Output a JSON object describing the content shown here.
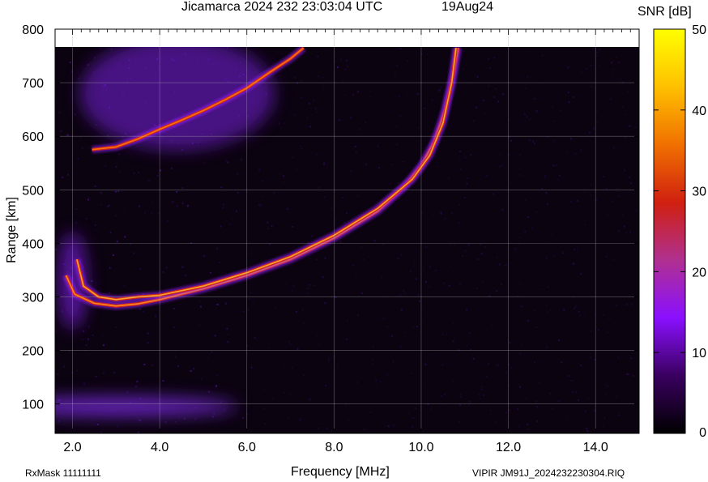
{
  "header": {
    "title": "Jicamarca 2024 232 23:03:04 UTC",
    "date": "19Aug24"
  },
  "footer": {
    "rxmask": "RxMask 11111111",
    "file": "VIPIR  JM91J_2024232230304.RIQ"
  },
  "colorbar": {
    "label": "SNR [dB]",
    "min": 0,
    "max": 50,
    "ticks": [
      "0",
      "10",
      "20",
      "30",
      "40",
      "50"
    ],
    "colors": [
      "#000000",
      "#3a0060",
      "#8a10ff",
      "#b03090",
      "#d02010",
      "#f07000",
      "#ffc000",
      "#ffff00"
    ]
  },
  "chart_data": {
    "type": "heatmap",
    "title": "Jicamarca 2024 232 23:03:04 UTC",
    "subtitle": "19Aug24",
    "xlabel": "Frequency [MHz]",
    "ylabel": "Range [km]",
    "xlim": [
      1.6,
      15.0
    ],
    "ylim": [
      45,
      800
    ],
    "xticks": [
      "2.0",
      "4.0",
      "6.0",
      "8.0",
      "10.0",
      "12.0",
      "14.0"
    ],
    "yticks": [
      "100",
      "200",
      "300",
      "400",
      "500",
      "600",
      "700",
      "800"
    ],
    "grid": true,
    "traces": [
      {
        "name": "",
        "points": [
          [
            1.85,
            340
          ],
          [
            2.05,
            305
          ],
          [
            2.5,
            288
          ],
          [
            3.0,
            283
          ],
          [
            3.5,
            287
          ],
          [
            4.0,
            295
          ],
          [
            5.0,
            315
          ],
          [
            6.0,
            340
          ],
          [
            7.0,
            370
          ],
          [
            8.0,
            410
          ],
          [
            9.0,
            460
          ],
          [
            9.6,
            505
          ],
          [
            10.0,
            545
          ],
          [
            10.3,
            590
          ],
          [
            10.55,
            650
          ],
          [
            10.75,
            720
          ],
          [
            10.85,
            765
          ]
        ]
      },
      {
        "name": "",
        "points": [
          [
            2.1,
            370
          ],
          [
            2.25,
            320
          ],
          [
            2.6,
            300
          ],
          [
            3.0,
            295
          ],
          [
            3.5,
            300
          ],
          [
            4.0,
            303
          ],
          [
            5.0,
            320
          ],
          [
            6.0,
            345
          ],
          [
            7.0,
            375
          ],
          [
            8.0,
            415
          ],
          [
            9.0,
            465
          ],
          [
            9.8,
            520
          ],
          [
            10.2,
            565
          ],
          [
            10.5,
            625
          ],
          [
            10.7,
            700
          ],
          [
            10.8,
            765
          ]
        ]
      },
      {
        "name": "",
        "points": [
          [
            2.45,
            575
          ],
          [
            3.0,
            580
          ],
          [
            3.5,
            595
          ],
          [
            4.0,
            613
          ],
          [
            4.5,
            630
          ],
          [
            5.0,
            648
          ],
          [
            5.5,
            668
          ],
          [
            6.0,
            690
          ],
          [
            6.5,
            718
          ],
          [
            7.0,
            745
          ],
          [
            7.3,
            765
          ]
        ]
      }
    ]
  }
}
